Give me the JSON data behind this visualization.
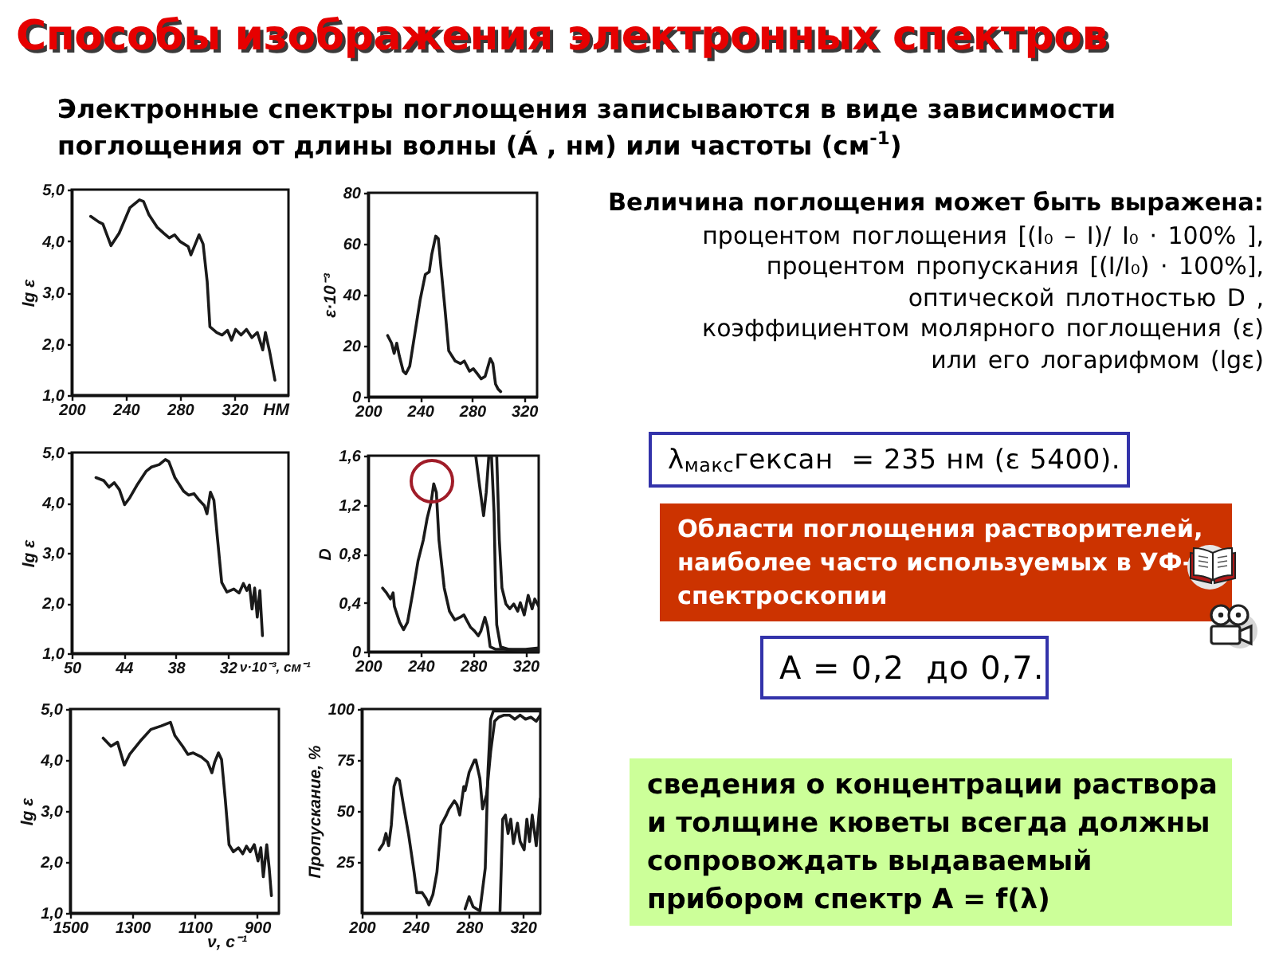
{
  "chart_data": [
    {
      "type": "other",
      "title": "Способы изображения электронных спектров",
      "subtitle": "Электронные спектры поглощения записываются в виде зависимости поглощения от длины волны (Á , нм) или частоты (см$^{-1}$)"
    },
    {
      "type": "line",
      "xlabel": "НМ",
      "ylabel": "lg ε",
      "xlim": [
        200,
        360
      ],
      "ylim": [
        1,
        5
      ],
      "xticks": [
        200,
        240,
        280,
        320
      ],
      "yticks": [
        {
          "value": 1,
          "label": "1,0"
        },
        {
          "value": 2,
          "label": "2,0"
        },
        {
          "value": 3,
          "label": "3,0"
        },
        {
          "value": 4,
          "label": "4,0"
        },
        {
          "value": 5,
          "label": "5,0"
        }
      ],
      "series": [
        {
          "color": "#1a1a1a",
          "x": [
            214,
            220,
            223,
            229,
            235,
            243,
            250,
            253,
            257,
            263,
            268,
            272,
            276,
            280,
            286,
            288,
            292,
            294,
            297,
            300,
            302,
            307,
            311,
            315,
            318,
            321,
            325,
            329,
            333,
            337,
            341,
            343,
            346,
            350
          ],
          "values": [
            4.48,
            4.37,
            4.33,
            3.91,
            4.15,
            4.65,
            4.8,
            4.77,
            4.51,
            4.27,
            4.15,
            4.06,
            4.12,
            3.99,
            3.89,
            3.73,
            3.99,
            4.12,
            3.94,
            3.21,
            2.33,
            2.22,
            2.17,
            2.26,
            2.07,
            2.28,
            2.17,
            2.28,
            2.12,
            2.22,
            1.88,
            2.22,
            1.86,
            1.29
          ]
        }
      ]
    },
    {
      "type": "line",
      "ylabel": "ε·10⁻³",
      "xlim": [
        200,
        330
      ],
      "ylim": [
        0,
        80
      ],
      "xticks": [
        200,
        240,
        280,
        320
      ],
      "yticks": [
        0,
        20,
        40,
        60,
        80
      ],
      "series": [
        {
          "color": "#1a1a1a",
          "x": [
            215,
            218,
            220,
            222,
            224,
            227,
            229,
            232,
            236,
            240,
            244,
            247,
            249,
            252,
            254,
            256,
            259,
            262,
            267,
            271,
            274,
            276,
            278,
            281,
            284,
            287,
            290,
            294,
            296,
            298,
            300,
            302
          ],
          "values": [
            24,
            21,
            17,
            21,
            16,
            10,
            9,
            12,
            25,
            38,
            48,
            49,
            56,
            63,
            62,
            51,
            35,
            18,
            14,
            13,
            14,
            12,
            10,
            11,
            9,
            7,
            8,
            15,
            13,
            5,
            3,
            2
          ]
        }
      ]
    },
    {
      "type": "line",
      "xlabel": "ν·10⁻³, см⁻¹",
      "ylabel": "lg ε",
      "xlim": [
        50,
        25
      ],
      "ylim": [
        1,
        5
      ],
      "xticks": [
        50,
        44,
        38,
        32
      ],
      "yticks": [
        {
          "value": 1,
          "label": "1,0"
        },
        {
          "value": 2,
          "label": "2,0"
        },
        {
          "value": 3,
          "label": "3,0"
        },
        {
          "value": 4,
          "label": "4,0"
        },
        {
          "value": 5,
          "label": "5,0"
        }
      ],
      "series": [
        {
          "color": "#1a1a1a",
          "x": [
            47.2,
            46.3,
            45.7,
            45.1,
            44.5,
            43.9,
            43.3,
            42.4,
            41.4,
            40.8,
            39.9,
            39.2,
            38.8,
            38.1,
            37.1,
            36.5,
            35.9,
            35.3,
            34.7,
            34.4,
            34,
            33.6,
            33.2,
            32.7,
            32.1,
            31.3,
            30.7,
            30.2,
            29.8,
            29.5,
            29.2,
            28.9,
            28.6,
            28.3,
            28
          ],
          "values": [
            4.5,
            4.44,
            4.31,
            4.4,
            4.26,
            3.96,
            4.1,
            4.37,
            4.63,
            4.71,
            4.76,
            4.86,
            4.82,
            4.5,
            4.23,
            4.15,
            4.18,
            4.05,
            3.94,
            3.78,
            4.21,
            4.05,
            3.31,
            2.41,
            2.22,
            2.28,
            2.2,
            2.39,
            2.25,
            2.36,
            1.88,
            2.3,
            1.72,
            2.25,
            1.35
          ]
        }
      ]
    },
    {
      "type": "line",
      "ylabel": "D",
      "xlim": [
        200,
        330
      ],
      "ylim": [
        0,
        1.6
      ],
      "xticks": [
        200,
        240,
        280,
        320
      ],
      "yticks": [
        0,
        {
          "value": 0.4,
          "label": "0,4"
        },
        {
          "value": 0.8,
          "label": "0,8"
        },
        {
          "value": 1.2,
          "label": "1,2"
        },
        {
          "value": 1.6,
          "label": "1,6"
        }
      ],
      "series": [
        {
          "color": "#1a1a1a",
          "x": [
            211,
            214,
            217,
            219,
            220,
            224,
            227,
            230,
            234,
            238,
            242,
            245,
            248,
            250,
            252,
            254,
            258,
            262,
            266,
            270,
            273,
            275,
            278,
            281,
            284,
            286,
            289,
            291,
            293,
            297,
            303,
            318,
            330
          ],
          "values": [
            0.52,
            0.48,
            0.43,
            0.48,
            0.37,
            0.24,
            0.18,
            0.24,
            0.48,
            0.74,
            0.91,
            1.09,
            1.22,
            1.37,
            1.3,
            0.91,
            0.52,
            0.33,
            0.26,
            0.28,
            0.3,
            0.26,
            0.2,
            0.17,
            0.13,
            0.17,
            0.28,
            0.2,
            0.04,
            0.02,
            0.02,
            0.01,
            0.01
          ]
        },
        {
          "color": "#1a1a1a",
          "x": [
            282,
            285,
            288,
            290,
            292
          ],
          "values": [
            1.6,
            1.35,
            1.11,
            1.3,
            1.6
          ]
        },
        {
          "color": "#1a1a1a",
          "x": [
            294,
            296,
            297,
            298,
            301,
            307,
            320,
            330
          ],
          "values": [
            1.6,
            1.13,
            0.57,
            0.22,
            0.04,
            0.02,
            0.02,
            0.03
          ]
        },
        {
          "color": "#1a1a1a",
          "x": [
            298,
            300,
            302,
            305,
            308,
            311,
            314,
            316,
            319,
            322,
            325,
            327,
            330
          ],
          "values": [
            1.6,
            0.91,
            0.52,
            0.39,
            0.35,
            0.39,
            0.33,
            0.4,
            0.3,
            0.46,
            0.35,
            0.43,
            0.37
          ]
        }
      ]
    },
    {
      "type": "line",
      "xlabel": "ν, с⁻¹",
      "ylabel": "lg ε",
      "xlim": [
        1500,
        830
      ],
      "ylim": [
        1,
        5
      ],
      "xticks": [
        1500,
        1300,
        1100,
        900
      ],
      "yticks": [
        {
          "value": 1,
          "label": "1,0"
        },
        {
          "value": 2,
          "label": "2,0"
        },
        {
          "value": 3,
          "label": "3,0"
        },
        {
          "value": 4,
          "label": "4,0"
        },
        {
          "value": 5,
          "label": "5,0"
        }
      ],
      "series": [
        {
          "color": "#1a1a1a",
          "x": [
            1394,
            1369,
            1348,
            1326,
            1309,
            1275,
            1241,
            1207,
            1178,
            1164,
            1139,
            1122,
            1105,
            1079,
            1059,
            1045,
            1036,
            1024,
            1014,
            1002,
            990,
            976,
            960,
            946,
            934,
            922,
            909,
            897,
            888,
            880,
            869,
            861,
            854
          ],
          "values": [
            4.43,
            4.27,
            4.35,
            3.9,
            4.11,
            4.37,
            4.6,
            4.67,
            4.74,
            4.48,
            4.27,
            4.11,
            4.14,
            4.06,
            3.96,
            3.75,
            3.96,
            4.14,
            4.01,
            3.22,
            2.34,
            2.2,
            2.28,
            2.16,
            2.31,
            2.2,
            2.34,
            2.02,
            2.28,
            1.71,
            2.34,
            1.87,
            1.34
          ]
        }
      ]
    },
    {
      "type": "line",
      "ylabel": "Пропускание, %",
      "xlim": [
        200,
        333
      ],
      "ylim": [
        0,
        100
      ],
      "xticks": [
        200,
        240,
        280,
        320
      ],
      "yticks": [
        25,
        50,
        75,
        100
      ],
      "series": [
        {
          "color": "#1a1a1a",
          "x": [
            213,
            216,
            218,
            220,
            222,
            224,
            226,
            228,
            231,
            235,
            239,
            241,
            245,
            248,
            250,
            253,
            256,
            259,
            263,
            265,
            269,
            271,
            273,
            276,
            277,
            280,
            284,
            285,
            288,
            290,
            293,
            296,
            299,
            302,
            306,
            310,
            314,
            318,
            322,
            326,
            330,
            333
          ],
          "values": [
            31,
            34,
            39,
            33,
            43,
            62,
            66,
            65,
            53,
            38,
            20,
            10,
            10,
            7,
            4,
            9,
            20,
            43,
            48,
            51,
            55,
            53,
            48,
            62,
            60,
            69,
            75,
            75,
            66,
            51,
            58,
            79,
            94,
            96,
            97,
            97,
            95,
            97,
            95,
            96,
            94,
            97
          ]
        },
        {
          "color": "#1a1a1a",
          "x": [
            277,
            280,
            283,
            288,
            292,
            294,
            296,
            298,
            312,
            333
          ],
          "values": [
            2,
            8,
            3,
            1,
            22,
            69,
            95,
            99,
            99,
            99
          ]
        },
        {
          "color": "#1a1a1a",
          "x": [
            303,
            305,
            307,
            309,
            311,
            313,
            316,
            318,
            321,
            323,
            325,
            327,
            330,
            333
          ],
          "values": [
            1,
            46,
            48,
            39,
            46,
            34,
            44,
            35,
            31,
            46,
            35,
            48,
            33,
            56
          ]
        }
      ]
    },
    {
      "type": "other",
      "annotations": [
        "Величина поглощения может быть выражена:",
        "процентом поглощения [(I₀ – I)/ I₀ · 100% ],",
        "процентом пропускания [(I/I₀) · 100%],",
        "оптической плотностью D ,",
        "коэффициентом молярного поглощения (ε)",
        "или его логарифмом (lgε)",
        "λ$_{макс}$гексан  = 235 нм (ε 5400).",
        "Области поглощения растворителей, наиболее часто используемых в УФ-спектроскопии",
        "A = 0,2  до 0,7.",
        "сведения о концентрации раствора и толщине кюветы всегда должны сопровождать выдаваемый прибором спектр A = f(λ)"
      ]
    }
  ]
}
